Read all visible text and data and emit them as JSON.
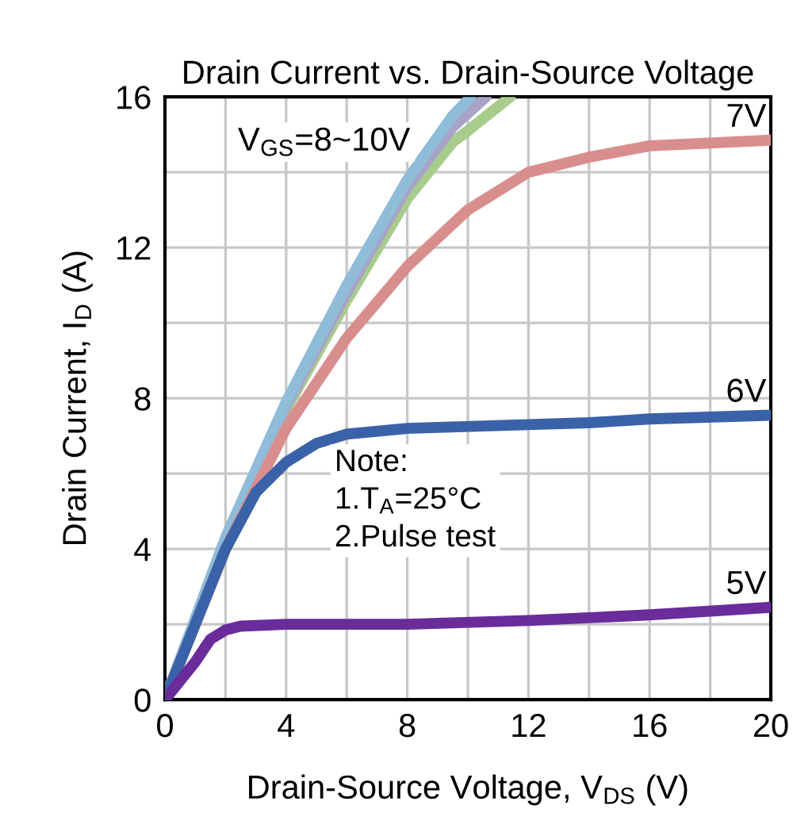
{
  "chart_data": {
    "type": "line",
    "title": "Drain Current vs. Drain-Source Voltage",
    "xlabel": "Drain-Source Voltage, V$_{DS}$ (V)",
    "ylabel": "Drain Current, I$_{D}$ (A)",
    "xlim": [
      0,
      20
    ],
    "ylim": [
      0,
      16
    ],
    "xticks": [
      0,
      {
        "value": 2,
        "label": null
      },
      4,
      {
        "value": 6,
        "label": null
      },
      8,
      {
        "value": 10,
        "label": null
      },
      12,
      {
        "value": 14,
        "label": null
      },
      16,
      {
        "value": 18,
        "label": null
      },
      20
    ],
    "yticks": [
      0,
      {
        "value": 2,
        "label": null
      },
      4,
      {
        "value": 6,
        "label": null
      },
      8,
      {
        "value": 10,
        "label": null
      },
      12,
      {
        "value": 14,
        "label": null
      },
      16
    ],
    "grid": true,
    "legend": false,
    "marker": "none",
    "line_style": "solid",
    "series": [
      {
        "color": "#a8cc8c",
        "x": [
          0,
          2,
          4,
          6,
          8,
          9.5,
          10,
          11.4
        ],
        "values": [
          0,
          4.2,
          7.7,
          10.6,
          13.3,
          14.8,
          15.1,
          16
        ]
      },
      {
        "color": "#a9a3c8",
        "x": [
          0,
          2,
          4,
          6,
          8,
          9.5,
          10.6
        ],
        "values": [
          0,
          4.25,
          7.8,
          10.8,
          13.6,
          15.2,
          16
        ]
      },
      {
        "color": "#8fbcd8",
        "x": [
          0,
          2,
          4,
          6,
          8,
          9.5,
          10.1
        ],
        "values": [
          0,
          4.3,
          7.9,
          11,
          13.8,
          15.5,
          16
        ]
      },
      {
        "name": "7V",
        "color": "#d98e8e",
        "x": [
          0,
          2,
          4,
          6,
          8,
          10,
          12,
          14,
          16,
          20
        ],
        "values": [
          0,
          4,
          7.2,
          9.6,
          11.5,
          13,
          14,
          14.4,
          14.7,
          14.85
        ]
      },
      {
        "name": "6V",
        "color": "#3a62a8",
        "x": [
          0,
          1,
          2,
          3,
          4,
          5,
          6,
          8,
          12,
          14,
          16,
          20
        ],
        "values": [
          0,
          2,
          4,
          5.5,
          6.3,
          6.8,
          7.05,
          7.2,
          7.3,
          7.35,
          7.45,
          7.55
        ]
      },
      {
        "name": "5V",
        "color": "#6a2c9a",
        "x": [
          0,
          1,
          1.5,
          2,
          2.5,
          4,
          8,
          12,
          16,
          20
        ],
        "values": [
          0,
          1,
          1.6,
          1.85,
          1.95,
          2,
          2,
          2.1,
          2.25,
          2.45
        ]
      }
    ],
    "annotations": [
      "V$_{GS}$=8~10V",
      "Note:\n1.T$_{A}$=25°C\n2.Pulse test"
    ]
  }
}
